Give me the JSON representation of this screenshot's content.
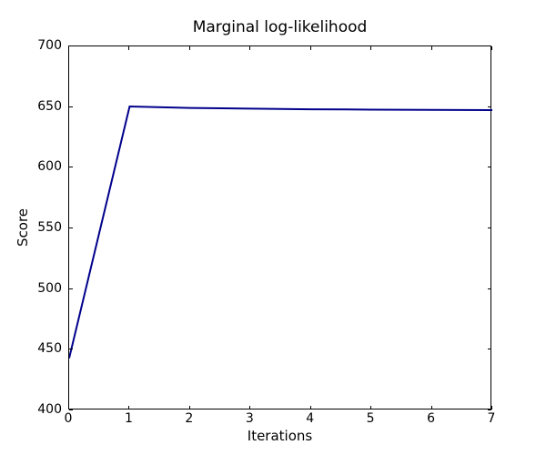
{
  "figure": {
    "background_color": "#ffffff",
    "axis_color": "#000000",
    "text_color": "#000000"
  },
  "chart_data": {
    "type": "line",
    "title": "Marginal log-likelihood",
    "xlabel": "Iterations",
    "ylabel": "Score",
    "x": [
      0,
      1,
      2,
      3,
      4,
      5,
      6,
      7
    ],
    "y": [
      443,
      650.5,
      649.3,
      648.7,
      648.2,
      647.9,
      647.7,
      647.5
    ],
    "xlim": [
      0,
      7
    ],
    "ylim": [
      400,
      700
    ],
    "x_ticks": [
      0,
      1,
      2,
      3,
      4,
      5,
      6,
      7
    ],
    "y_ticks": [
      400,
      450,
      500,
      550,
      600,
      650,
      700
    ],
    "grid": false,
    "legend_position": "none",
    "tick_direction": "in",
    "line_color": "#00008b",
    "line_width": 2
  }
}
